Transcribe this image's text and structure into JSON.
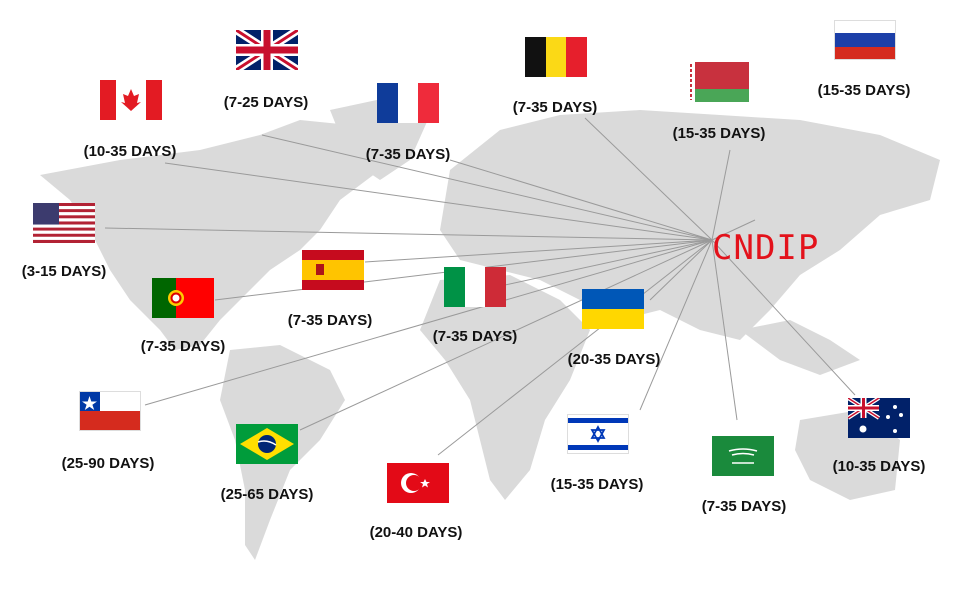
{
  "hub": {
    "name": "CNDIP",
    "color": "#e3121b"
  },
  "destinations": [
    {
      "country": "United Kingdom",
      "flag": "uk-flag",
      "days": "(7-25 DAYS)"
    },
    {
      "country": "Canada",
      "flag": "canada-flag",
      "days": "(10-35 DAYS)"
    },
    {
      "country": "France",
      "flag": "france-flag",
      "days": "(7-35 DAYS)"
    },
    {
      "country": "Belgium",
      "flag": "belgium-flag",
      "days": "(7-35 DAYS)"
    },
    {
      "country": "Belarus",
      "flag": "belarus-flag",
      "days": "(15-35 DAYS)"
    },
    {
      "country": "Russia",
      "flag": "russia-flag",
      "days": "(15-35 DAYS)"
    },
    {
      "country": "United States",
      "flag": "usa-flag",
      "days": "(3-15 DAYS)"
    },
    {
      "country": "Spain",
      "flag": "spain-flag",
      "days": "(7-35 DAYS)"
    },
    {
      "country": "Portugal",
      "flag": "portugal-flag",
      "days": "(7-35 DAYS)"
    },
    {
      "country": "Italy",
      "flag": "italy-flag",
      "days": "(7-35 DAYS)"
    },
    {
      "country": "Ukraine",
      "flag": "ukraine-flag",
      "days": "(20-35 DAYS)"
    },
    {
      "country": "Chile",
      "flag": "chile-flag",
      "days": "(25-90 DAYS)"
    },
    {
      "country": "Brazil",
      "flag": "brazil-flag",
      "days": "(25-65 DAYS)"
    },
    {
      "country": "Turkey",
      "flag": "turkey-flag",
      "days": "(20-40 DAYS)"
    },
    {
      "country": "Israel",
      "flag": "israel-flag",
      "days": "(15-35 DAYS)"
    },
    {
      "country": "Saudi Arabia",
      "flag": "saudi-flag",
      "days": "(7-35 DAYS)"
    },
    {
      "country": "Australia",
      "flag": "australia-flag",
      "days": "(10-35 DAYS)"
    }
  ]
}
